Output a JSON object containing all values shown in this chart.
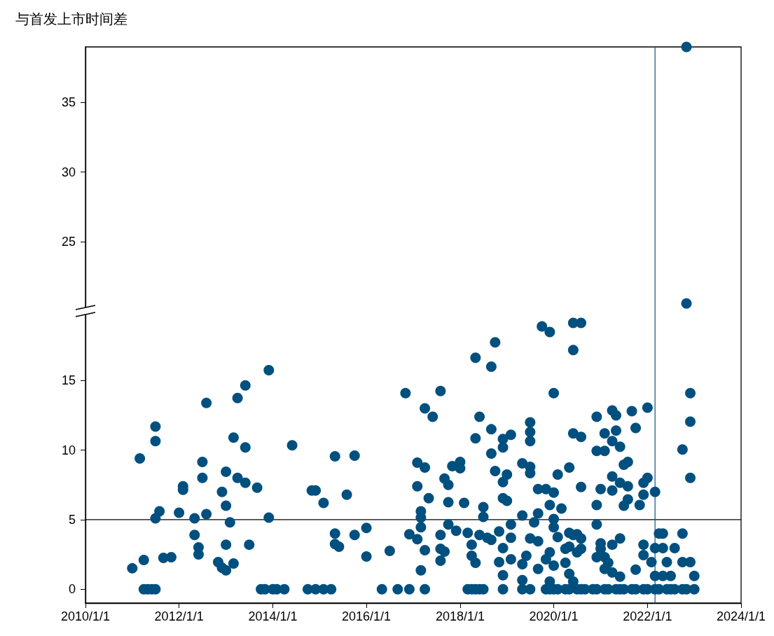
{
  "chart_data": {
    "type": "scatter",
    "ylabel": "与首发上市时间差",
    "xlim": [
      "2010-01-01",
      "2024-01-01"
    ],
    "ylim": [
      -1,
      39
    ],
    "xticks": [
      {
        "value": "2010-01-01",
        "label": "2010/1/1"
      },
      {
        "value": "2012-01-01",
        "label": "2012/1/1"
      },
      {
        "value": "2014-01-01",
        "label": "2014/1/1"
      },
      {
        "value": "2016-01-01",
        "label": "2016/1/1"
      },
      {
        "value": "2018-01-01",
        "label": "2018/1/1"
      },
      {
        "value": "2020-01-01",
        "label": "2020/1/1"
      },
      {
        "value": "2022-01-01",
        "label": "2022/1/1"
      },
      {
        "value": "2024-01-01",
        "label": "2024/1/1"
      }
    ],
    "yticks": [
      0,
      5,
      10,
      15,
      25,
      30,
      35
    ],
    "marker": "circle",
    "grid": false,
    "ref_lines": [
      {
        "axis": "y",
        "value": 5,
        "color": "#000000"
      },
      {
        "axis": "x",
        "value": "2022-03",
        "color": "#1f5f8b"
      }
    ],
    "series": [
      {
        "color": "#00507f",
        "x": [
          "2011-01",
          "2011-04",
          "2011-03",
          "2011-04",
          "2011-05",
          "2011-06",
          "2011-07",
          "2011-07",
          "2011-07",
          "2011-07",
          "2011-08",
          "2011-09",
          "2011-11",
          "2012-01",
          "2012-02",
          "2012-02",
          "2012-05",
          "2012-05",
          "2012-06",
          "2012-06",
          "2012-07",
          "2012-07",
          "2012-08",
          "2012-08",
          "2012-11",
          "2012-12",
          "2013-01",
          "2013-03",
          "2013-01",
          "2013-02",
          "2013-01",
          "2012-12",
          "2013-01",
          "2013-04",
          "2013-06",
          "2013-03",
          "2013-06",
          "2013-04",
          "2013-06",
          "2013-07",
          "2013-09",
          "2013-12",
          "2013-12",
          "2013-10",
          "2013-11",
          "2014-01",
          "2014-02",
          "2014-04",
          "2014-06",
          "2014-10",
          "2014-12",
          "2015-02",
          "2015-04",
          "2014-12",
          "2014-11",
          "2015-02",
          "2015-05",
          "2015-05",
          "2015-05",
          "2015-06",
          "2015-10",
          "2015-08",
          "2015-10",
          "2016-01",
          "2016-01",
          "2016-05",
          "2016-09",
          "2016-12",
          "2017-04",
          "2018-03",
          "2018-04",
          "2018-05",
          "2018-06",
          "2018-07",
          "2018-12",
          "2019-05",
          "2019-07",
          "2016-07",
          "2016-11",
          "2016-12",
          "2017-02",
          "2017-04",
          "2017-02",
          "2017-05",
          "2017-03",
          "2017-03",
          "2017-03",
          "2017-02",
          "2017-04",
          "2017-03",
          "2017-08",
          "2017-08",
          "2017-04",
          "2017-06",
          "2017-09",
          "2017-10",
          "2017-10",
          "2017-10",
          "2017-08",
          "2017-09",
          "2017-08",
          "2017-11",
          "2018-01",
          "2018-01",
          "2018-02",
          "2017-12",
          "2018-03",
          "2018-05",
          "2018-05",
          "2018-06",
          "2018-09",
          "2018-10",
          "2018-09",
          "2018-07",
          "2018-07",
          "2018-04",
          "2018-04",
          "2018-05",
          "2018-06",
          "2018-08",
          "2018-09",
          "2018-11",
          "2018-10",
          "2018-12",
          "2019-01",
          "2018-09",
          "2018-12",
          "2018-12",
          "2019-02",
          "2018-12",
          "2019-01",
          "2018-12",
          "2018-11",
          "2019-02",
          "2018-12",
          "2019-02",
          "2019-02",
          "2019-05",
          "2019-05",
          "2019-07",
          "2019-07",
          "2019-07",
          "2019-07",
          "2019-07",
          "2019-07",
          "2019-09",
          "2019-05",
          "2019-05",
          "2019-06",
          "2019-08",
          "2019-09",
          "2019-09",
          "2019-10",
          "2019-12",
          "2020-01",
          "2019-09",
          "2019-11",
          "2020-01",
          "2019-12",
          "2020-03",
          "2020-02",
          "2020-05",
          "2020-06",
          "2020-06",
          "2020-08",
          "2020-06",
          "2020-08",
          "2020-08",
          "2020-01",
          "2020-01",
          "2020-02",
          "2019-12",
          "2020-01",
          "2019-11",
          "2020-04",
          "2020-05",
          "2020-06",
          "2020-05",
          "2020-06",
          "2020-05",
          "2020-07",
          "2019-12",
          "2022-11",
          "2022-12",
          "2022-12",
          "2022-10",
          "2022-12",
          "2022-01",
          "2021-09",
          "2021-04",
          "2021-05",
          "2020-12",
          "2021-10",
          "2021-02",
          "2021-05",
          "2021-04",
          "2021-06",
          "2020-12",
          "2021-02",
          "2021-07",
          "2021-08",
          "2021-04",
          "2021-06",
          "2021-08",
          "2021-12",
          "2022-01",
          "2022-03",
          "2021-01",
          "2021-04",
          "2021-12",
          "2021-08",
          "2021-07",
          "2021-11",
          "2020-12",
          "2020-12",
          "2020-07",
          "2020-08",
          "2020-04",
          "2020-08",
          "2021-01",
          "2021-01",
          "2021-04",
          "2021-06",
          "2020-12",
          "2021-02",
          "2021-03",
          "2021-02",
          "2021-04",
          "2021-06",
          "2021-10",
          "2021-12",
          "2021-12",
          "2022-02",
          "2022-04",
          "2022-05",
          "2022-03",
          "2022-05",
          "2022-08",
          "2022-06",
          "2022-10",
          "2022-12",
          "2022-10",
          "2022-03",
          "2022-05",
          "2022-07",
          "2023-01",
          "2022-11",
          "2019-11",
          "2019-12",
          "2020-01",
          "2020-02",
          "2020-04",
          "2020-05",
          "2020-07",
          "2020-08",
          "2020-09",
          "2020-11",
          "2020-12",
          "2021-02",
          "2021-03",
          "2021-05",
          "2021-06",
          "2021-07",
          "2021-09",
          "2021-10",
          "2021-12",
          "2022-01",
          "2022-03",
          "2022-04",
          "2022-06",
          "2022-07",
          "2022-08",
          "2022-10",
          "2022-11",
          "2023-01"
        ],
        "values": [
          1.5,
          2.1,
          9.4,
          0,
          0,
          0,
          0,
          11.7,
          10.65,
          5.1,
          5.6,
          2.25,
          2.3,
          5.5,
          7.4,
          7.15,
          5.1,
          3.9,
          3.0,
          2.5,
          9.15,
          8.0,
          5.4,
          13.4,
          1.95,
          1.55,
          1.35,
          1.85,
          3.2,
          4.8,
          6.0,
          7.0,
          8.45,
          8.0,
          7.65,
          10.9,
          10.2,
          13.75,
          14.65,
          3.2,
          7.3,
          15.75,
          5.15,
          0,
          0,
          0,
          0,
          0,
          10.35,
          0,
          0,
          0,
          0,
          7.1,
          7.1,
          6.2,
          9.55,
          4.0,
          3.25,
          3.05,
          9.6,
          6.8,
          3.9,
          4.4,
          2.35,
          0,
          0,
          0,
          0,
          0,
          0,
          0,
          0,
          0,
          0,
          0,
          0,
          2.75,
          14.1,
          3.95,
          9.1,
          8.75,
          7.4,
          6.55,
          5.6,
          5.15,
          4.45,
          3.6,
          2.8,
          1.35,
          2.05,
          14.25,
          13.0,
          12.4,
          7.95,
          7.5,
          6.25,
          4.65,
          3.9,
          2.7,
          2.9,
          8.85,
          9.15,
          8.7,
          6.2,
          4.2,
          4.05,
          16.65,
          10.85,
          12.4,
          16.0,
          17.75,
          11.5,
          5.9,
          5.2,
          3.2,
          2.4,
          1.9,
          3.9,
          3.7,
          3.55,
          4.15,
          8.5,
          7.7,
          8.25,
          9.75,
          10.2,
          10.8,
          11.1,
          6.55,
          6.35,
          2.95,
          1.95,
          3.7,
          1.0,
          4.65,
          2.15,
          5.3,
          9.05,
          12.0,
          11.3,
          10.65,
          8.35,
          8.8,
          3.65,
          5.45,
          0.65,
          1.8,
          2.4,
          4.8,
          3.45,
          1.45,
          18.9,
          18.5,
          14.1,
          7.2,
          7.2,
          6.95,
          6.05,
          5.8,
          8.25,
          8.75,
          17.2,
          19.15,
          19.15,
          11.2,
          10.95,
          7.35,
          5.05,
          4.45,
          3.75,
          2.65,
          1.7,
          2.15,
          1.9,
          1.1,
          0.55,
          4.05,
          3.9,
          3.05,
          2.65,
          0.55,
          39,
          14.1,
          12.05,
          10.05,
          8.0,
          13.05,
          12.8,
          12.85,
          12.5,
          12.4,
          11.6,
          11.2,
          11.4,
          10.65,
          10.25,
          9.95,
          9.95,
          8.95,
          9.15,
          8.1,
          7.65,
          7.4,
          7.65,
          8.0,
          7.0,
          7.2,
          7.1,
          6.8,
          6.45,
          6.0,
          6.05,
          6.05,
          4.65,
          3.95,
          3.65,
          2.9,
          2.9,
          3.3,
          2.9,
          3.2,
          3.65,
          2.3,
          2.3,
          1.9,
          1.45,
          1.2,
          0.9,
          1.4,
          3.2,
          2.45,
          1.95,
          4.0,
          4.0,
          2.95,
          2.95,
          2.95,
          1.95,
          1.95,
          1.95,
          4.0,
          0.95,
          0.95,
          0.95,
          0.95,
          20.55,
          0,
          0,
          0,
          0,
          0,
          0,
          0,
          0,
          0,
          0,
          0,
          0,
          0,
          0,
          0,
          0,
          0,
          0,
          0,
          0,
          0,
          0,
          0,
          0,
          0,
          0,
          0,
          0
        ]
      }
    ]
  }
}
